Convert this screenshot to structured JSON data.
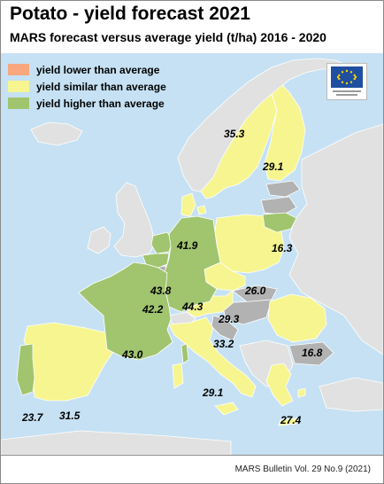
{
  "title": "Potato - yield forecast 2021",
  "subtitle": "MARS forecast versus average yield (t/ha) 2016 - 2020",
  "source": "MARS Bulletin Vol. 29 No.9 (2021)",
  "colors": {
    "sea": "#c6e1f3",
    "non_eu": "#e1e1e1",
    "eu_no_forecast": "#b2b2b2",
    "lower": "#f8a77e",
    "similar": "#f6f590",
    "higher": "#a1c46e",
    "border": "#ffffff"
  },
  "legend": [
    {
      "label": "yield lower than average",
      "color": "#f8a77e"
    },
    {
      "label": "yield similar than average",
      "color": "#f6f590"
    },
    {
      "label": "yield higher than average",
      "color": "#a1c46e"
    }
  ],
  "regions": [
    {
      "name": "Sweden",
      "value": "35.3",
      "category": "similar"
    },
    {
      "name": "Finland",
      "value": "29.1",
      "category": "similar"
    },
    {
      "name": "Denmark",
      "value": "41.9",
      "category": "similar"
    },
    {
      "name": "Lithuania",
      "value": "16.3",
      "category": "higher"
    },
    {
      "name": "Netherlands",
      "value": "43.8",
      "category": "higher"
    },
    {
      "name": "Belgium",
      "value": "42.2",
      "category": "higher"
    },
    {
      "name": "Germany",
      "value": "44.3",
      "category": "higher"
    },
    {
      "name": "Poland",
      "value": "26.0",
      "category": "similar"
    },
    {
      "name": "Czechia",
      "value": "29.3",
      "category": "similar"
    },
    {
      "name": "Austria",
      "value": "33.2",
      "category": "similar"
    },
    {
      "name": "France",
      "value": "43.0",
      "category": "higher"
    },
    {
      "name": "Romania",
      "value": "16.8",
      "category": "similar"
    },
    {
      "name": "Italy",
      "value": "29.1",
      "category": "similar"
    },
    {
      "name": "Portugal",
      "value": "23.7",
      "category": "higher"
    },
    {
      "name": "Spain",
      "value": "31.5",
      "category": "similar"
    },
    {
      "name": "Greece",
      "value": "27.4",
      "category": "similar"
    }
  ],
  "eu_logo": {
    "icon": "eu-flag-icon",
    "caption": "European Commission"
  }
}
